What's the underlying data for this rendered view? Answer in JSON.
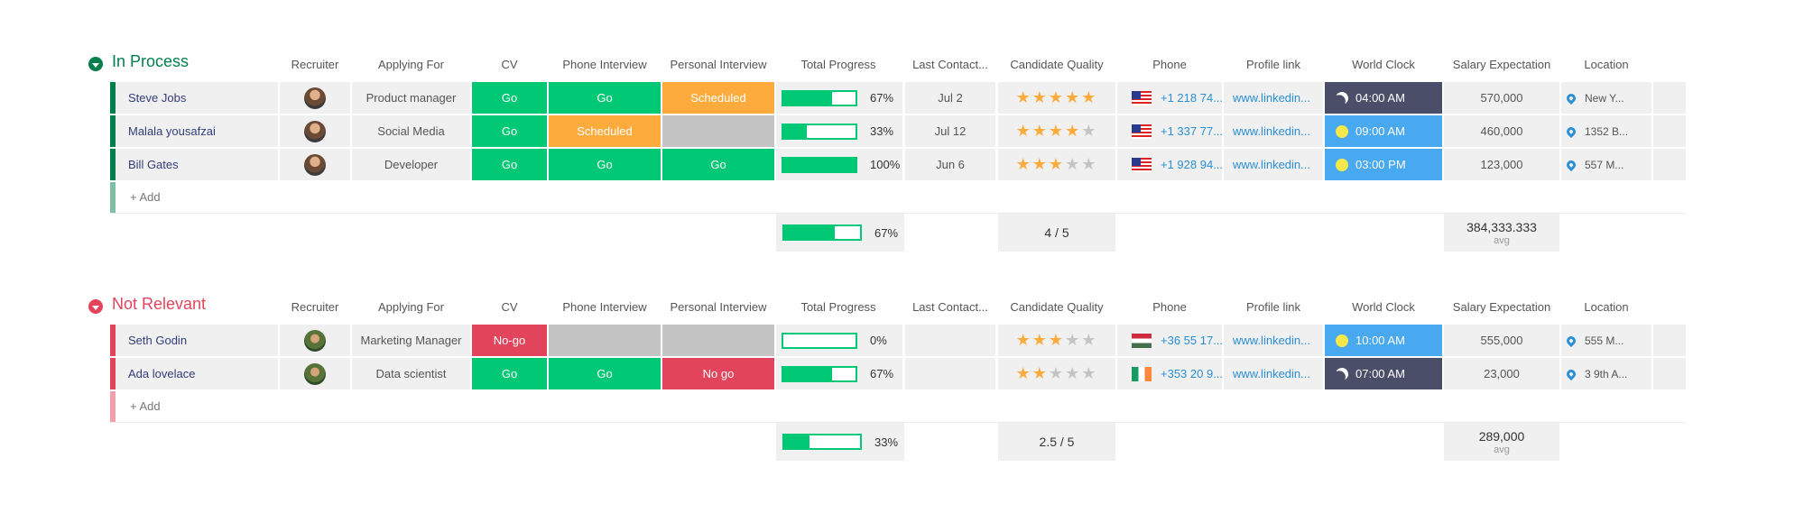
{
  "columns": [
    "Recruiter",
    "Applying For",
    "CV",
    "Phone Interview",
    "Personal Interview",
    "Total Progress",
    "Last Contact...",
    "Candidate Quality",
    "Phone",
    "Profile link",
    "World Clock",
    "Salary Expectation",
    "Location"
  ],
  "add_label": "+ Add",
  "groups": [
    {
      "title": "In Process",
      "color": "#037f4c",
      "rows": [
        {
          "name": "Steve Jobs",
          "applying": "Product manager",
          "cv": "Go",
          "phone_interview": "Scheduled",
          "phone_interview_text": "Go",
          "personal": "Scheduled",
          "progress": 67,
          "progress_text": "67%",
          "contact": "Jul 2",
          "quality": 5,
          "phone": "+1 218 74...",
          "link": "www.linkedin...",
          "clock": "04:00 AM",
          "clock_mode": "night",
          "salary": "570,000",
          "location": "New Y..."
        },
        {
          "name": "Malala yousafzai",
          "applying": "Social Media",
          "cv": "Go",
          "phone_interview_text": "Scheduled",
          "personal": "",
          "progress": 33,
          "progress_text": "33%",
          "contact": "Jul 12",
          "quality": 4,
          "phone": "+1 337 77...",
          "link": "www.linkedin...",
          "clock": "09:00 AM",
          "clock_mode": "day",
          "salary": "460,000",
          "location": "1352 B..."
        },
        {
          "name": "Bill Gates",
          "applying": "Developer",
          "cv": "Go",
          "phone_interview_text": "Go",
          "personal": "Go",
          "progress": 100,
          "progress_text": "100%",
          "contact": "Jun 6",
          "quality": 3,
          "phone": "+1 928 94...",
          "link": "www.linkedin...",
          "clock": "03:00 PM",
          "clock_mode": "day",
          "salary": "123,000",
          "location": "557 M..."
        }
      ],
      "summary": {
        "progress": 67,
        "progress_text": "67%",
        "quality": "4 / 5",
        "salary": "384,333.333",
        "salary_label": "avg"
      }
    },
    {
      "title": "Not Relevant",
      "color": "#e2445c",
      "rows": [
        {
          "name": "Seth Godin",
          "applying": "Marketing Manager",
          "cv": "No-go",
          "phone_interview_text": "",
          "personal": "",
          "progress": 0,
          "progress_text": "0%",
          "contact": "",
          "quality": 3,
          "phone": "+36 55 17...",
          "link": "www.linkedin...",
          "clock": "10:00 AM",
          "clock_mode": "day",
          "salary": "555,000",
          "location": "555 M..."
        },
        {
          "name": "Ada lovelace",
          "applying": "Data scientist",
          "cv": "Go",
          "phone_interview_text": "Go",
          "personal": "No go",
          "progress": 67,
          "progress_text": "67%",
          "contact": "",
          "quality": 2,
          "phone": "+353 20 9...",
          "link": "www.linkedin...",
          "clock": "07:00 AM",
          "clock_mode": "night",
          "salary": "23,000",
          "location": "3 9th A..."
        }
      ],
      "summary": {
        "progress": 33,
        "progress_text": "33%",
        "quality": "2.5 / 5",
        "salary": "289,000",
        "salary_label": "avg"
      }
    }
  ],
  "icons": {
    "group_toggle": "chevron-down-icon",
    "world_clock_night": "moon-icon",
    "world_clock_day": "sun-icon",
    "location": "map-pin-icon"
  },
  "colors": {
    "go": "#00c875",
    "scheduled": "#fdab3d",
    "no_go": "#e2445c",
    "empty": "#c4c4c4",
    "clock_night": "#4b4e69",
    "clock_day": "#48a9f0",
    "link": "#2a8fd4"
  }
}
